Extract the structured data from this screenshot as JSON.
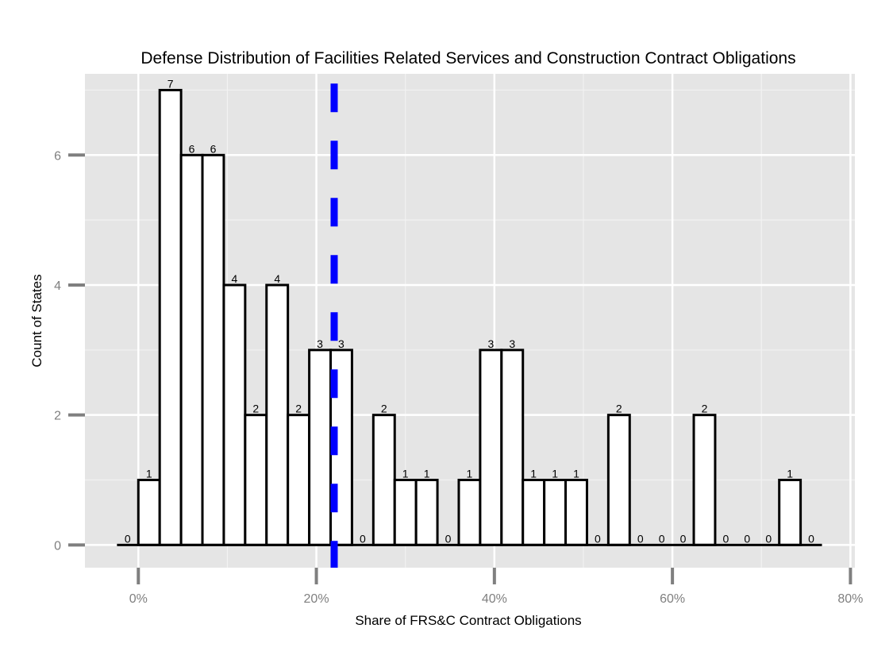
{
  "chart_data": {
    "type": "bar",
    "subtype": "histogram",
    "title": "Defense Distribution of Facilities Related Services and Construction Contract Obligations",
    "xlabel": "Share of FRS&C Contract Obligations",
    "ylabel": "Count of States",
    "x_tick_labels": [
      "0%",
      "20%",
      "40%",
      "60%",
      "80%"
    ],
    "x_tick_values": [
      0,
      0.2,
      0.4,
      0.6,
      0.8
    ],
    "y_tick_labels": [
      "0",
      "2",
      "4",
      "6"
    ],
    "y_tick_values": [
      0,
      2,
      4,
      6
    ],
    "xlim": [
      -0.06,
      0.805
    ],
    "ylim": [
      -0.35,
      7.25
    ],
    "bin_width": 0.024,
    "bin_starts": [
      -0.024,
      0.0,
      0.024,
      0.048,
      0.072,
      0.096,
      0.12,
      0.144,
      0.168,
      0.192,
      0.216,
      0.24,
      0.264,
      0.288,
      0.312,
      0.336,
      0.36,
      0.384,
      0.408,
      0.432,
      0.456,
      0.48,
      0.504,
      0.528,
      0.552,
      0.576,
      0.6,
      0.624,
      0.648,
      0.672,
      0.696,
      0.72,
      0.744
    ],
    "values": [
      0,
      1,
      7,
      6,
      6,
      4,
      2,
      4,
      2,
      3,
      3,
      0,
      2,
      1,
      1,
      0,
      1,
      3,
      3,
      1,
      1,
      1,
      0,
      2,
      0,
      0,
      0,
      2,
      0,
      0,
      0,
      1,
      0
    ],
    "reference_line": {
      "x": 0.22,
      "style": "dashed",
      "color": "#0000ff"
    },
    "bar_fill": "#ffffff",
    "bar_stroke": "#000000",
    "panel_background": "#e5e5e5",
    "grid": true,
    "legend": "none"
  }
}
